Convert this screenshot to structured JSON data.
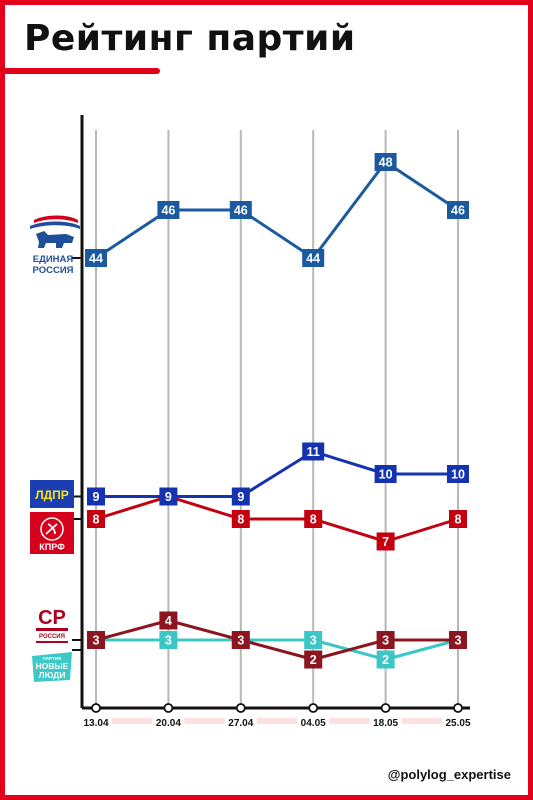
{
  "header": {
    "title": "Рейтинг партий"
  },
  "credit": "@polylog_expertise",
  "logos": {
    "ur": {
      "line1": "ЕДИНАЯ",
      "line2": "РОССИЯ",
      "color": "#1f4e9a"
    },
    "ldpr": {
      "text": "ЛДПР",
      "bg": "#1a3fb5",
      "fg": "#ffe600"
    },
    "kprf": {
      "text": "КПРФ",
      "bg": "#d4001c"
    },
    "sr": {
      "text": "СР",
      "sub": "РОССИЯ",
      "color": "#b00020"
    },
    "nl": {
      "line0": "ПАРТИЯ",
      "line1": "НОВЫЕ",
      "line2": "ЛЮДИ",
      "bg": "#3ec8c8"
    }
  },
  "chart_data": {
    "type": "line",
    "categories": [
      "13.04",
      "20.04",
      "27.04",
      "04.05",
      "18.05",
      "25.05"
    ],
    "series": [
      {
        "name": "ЕДИНАЯ РОССИЯ",
        "values": [
          44,
          46,
          46,
          44,
          48,
          46
        ],
        "color": "#1c5aa0"
      },
      {
        "name": "ЛДПР",
        "values": [
          9,
          9,
          9,
          11,
          10,
          10
        ],
        "color": "#1533b0"
      },
      {
        "name": "КПРФ",
        "values": [
          8,
          9,
          8,
          8,
          7,
          8
        ],
        "color": "#c40010"
      },
      {
        "name": "СР",
        "values": [
          3,
          4,
          3,
          2,
          3,
          3
        ],
        "color": "#8c1520"
      },
      {
        "name": "НОВЫЕ ЛЮДИ",
        "values": [
          3,
          3,
          3,
          3,
          2,
          3
        ],
        "color": "#3cc6c6"
      }
    ],
    "label_series": [
      [
        true,
        true,
        true,
        true,
        true,
        true
      ],
      [
        true,
        true,
        true,
        true,
        true,
        true
      ],
      [
        true,
        false,
        true,
        true,
        true,
        true
      ],
      [
        true,
        true,
        true,
        true,
        true,
        true
      ],
      [
        true,
        true,
        true,
        true,
        true,
        true
      ]
    ],
    "grid": true,
    "legend": "left logos"
  }
}
